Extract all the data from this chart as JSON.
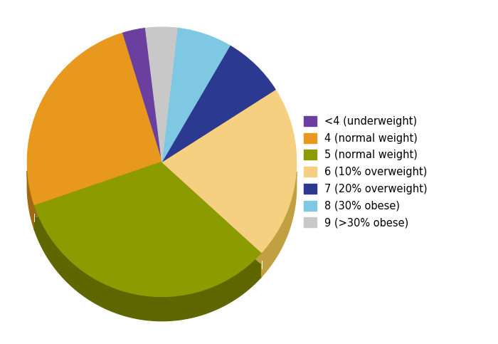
{
  "labels": [
    "<4 (underweight)",
    "4 (normal weight)",
    "5 (normal weight)",
    "6 (10% overweight)",
    "7 (20% overweight)",
    "8 (30% obese)",
    "9 (>30% obese)"
  ],
  "sizes": [
    3.0,
    27.0,
    35.0,
    22.0,
    8.0,
    7.0,
    4.0
  ],
  "colors": [
    "#6B3FA0",
    "#E8981D",
    "#8C9B00",
    "#F5D080",
    "#2B3990",
    "#7EC8E3",
    "#C8C8C8"
  ],
  "edge_colors": [
    "#4A2C70",
    "#A06810",
    "#5E6600",
    "#C0A040",
    "#1A2560",
    "#4090A8",
    "#909090"
  ],
  "startangle": 97,
  "depth": 0.12,
  "figsize": [
    7.0,
    4.83
  ],
  "dpi": 100,
  "legend_fontsize": 10.5,
  "background_color": "#FFFFFF"
}
